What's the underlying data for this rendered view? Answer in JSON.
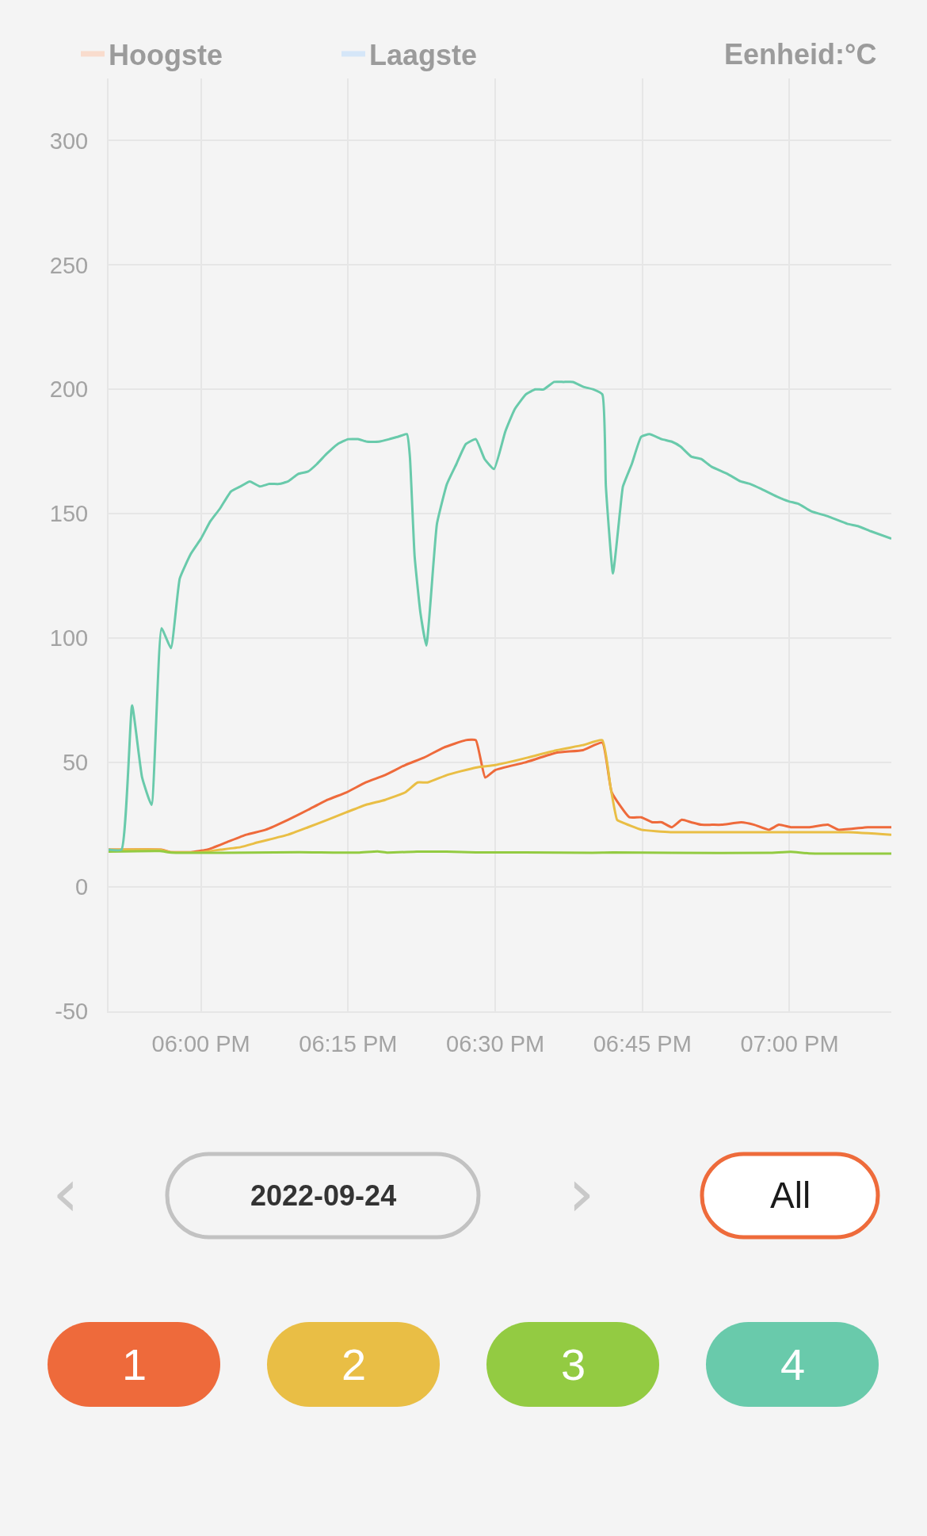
{
  "chart_data": {
    "type": "line",
    "xlim": [
      17.843,
      19.173
    ],
    "xticks": [
      {
        "value": 18,
        "label": "06:00 PM"
      },
      {
        "value": 18.25,
        "label": "06:15 PM"
      },
      {
        "value": 18.5,
        "label": "06:30 PM"
      },
      {
        "value": 18.75,
        "label": "06:45 PM"
      },
      {
        "value": 19,
        "label": "07:00 PM"
      }
    ],
    "ylim": [
      -50,
      325
    ],
    "yticks": [
      -50,
      0,
      50,
      100,
      150,
      200,
      250,
      300
    ],
    "grid": true,
    "legend": "top left",
    "annotations": [
      "Eenheid:°C",
      "‹",
      "2022-09-24",
      "›",
      "All"
    ],
    "series": [
      {
        "name": "Hoogste",
        "color": "#f9dccd"
      },
      {
        "name": "Laagste",
        "color": "#d5e6f8"
      },
      {
        "name": "1",
        "color": "#ee6a3b",
        "x": [
          17.843,
          17.933,
          17.948,
          17.983,
          18.011,
          18.044,
          18.077,
          18.11,
          18.148,
          18.182,
          18.215,
          18.247,
          18.28,
          18.313,
          18.347,
          18.379,
          18.412,
          18.45,
          18.467,
          18.483,
          18.5,
          18.55,
          18.605,
          18.649,
          18.682,
          18.698,
          18.728,
          18.748,
          18.767,
          18.783,
          18.8,
          18.817,
          18.833,
          18.85,
          18.868,
          18.885,
          18.918,
          18.94,
          18.965,
          18.982,
          19.002,
          19.017,
          19.033,
          19.065,
          19.083,
          19.133,
          19.173
        ],
        "values": [
          15,
          15,
          14,
          14,
          15,
          18,
          21,
          23,
          27,
          31,
          35,
          38,
          42,
          45,
          49,
          52,
          56,
          59,
          59,
          44,
          47,
          50,
          54,
          55,
          58,
          38,
          28,
          28,
          26,
          26,
          24,
          27,
          26,
          25,
          25,
          25,
          26,
          25,
          23,
          25,
          24,
          24,
          24,
          25,
          23,
          24,
          24
        ]
      },
      {
        "name": "2",
        "color": "#e9be45",
        "x": [
          17.843,
          17.93,
          17.948,
          18.0,
          18.033,
          18.067,
          18.098,
          18.148,
          18.182,
          18.215,
          18.247,
          18.28,
          18.313,
          18.347,
          18.368,
          18.385,
          18.418,
          18.467,
          18.5,
          18.555,
          18.605,
          18.649,
          18.682,
          18.696,
          18.707,
          18.715,
          18.748,
          18.798,
          18.852,
          18.93,
          18.965,
          19.002,
          19.1,
          19.173
        ],
        "values": [
          15,
          15,
          14,
          14,
          15,
          16,
          18,
          21,
          24,
          27,
          30,
          33,
          35,
          38,
          42,
          42,
          45,
          48,
          49,
          52,
          55,
          57,
          59,
          40,
          27,
          26,
          23,
          22,
          22,
          22,
          22,
          22,
          22,
          21
        ]
      },
      {
        "name": "3",
        "color": "#93cb42",
        "x": [
          17.843,
          17.93,
          17.95,
          18.083,
          18.167,
          18.267,
          18.3,
          18.317,
          18.367,
          18.417,
          18.467,
          18.55,
          18.665,
          18.7,
          18.8,
          18.965,
          19.002,
          19.033,
          19.173
        ],
        "values": [
          14.2,
          14.4,
          13.8,
          13.8,
          14.0,
          13.8,
          14.3,
          13.8,
          14.2,
          14.2,
          13.9,
          13.9,
          13.7,
          13.9,
          13.7,
          13.7,
          14.1,
          13.5,
          13.4
        ]
      },
      {
        "name": "4",
        "color": "#69caab",
        "x": [
          17.843,
          17.865,
          17.883,
          17.9,
          17.916,
          17.933,
          17.949,
          17.964,
          17.983,
          18.0,
          18.016,
          18.032,
          18.051,
          18.067,
          18.083,
          18.1,
          18.116,
          18.133,
          18.148,
          18.165,
          18.182,
          18.197,
          18.213,
          18.232,
          18.25,
          18.267,
          18.282,
          18.302,
          18.32,
          18.335,
          18.35,
          18.355,
          18.363,
          18.373,
          18.383,
          18.395,
          18.401,
          18.418,
          18.434,
          18.45,
          18.467,
          18.482,
          18.498,
          18.517,
          18.533,
          18.552,
          18.568,
          18.582,
          18.6,
          18.616,
          18.632,
          18.65,
          18.667,
          18.682,
          18.688,
          18.7,
          18.712,
          18.717,
          18.732,
          18.748,
          18.762,
          18.783,
          18.8,
          18.815,
          18.833,
          18.85,
          18.867,
          18.895,
          18.917,
          18.933,
          18.952,
          18.978,
          18.999,
          19.015,
          19.037,
          19.065,
          19.098,
          19.117,
          19.138,
          19.173
        ],
        "values": [
          15,
          15,
          73,
          44,
          33,
          104,
          96,
          124,
          134,
          140,
          147,
          152,
          159,
          161,
          163,
          161,
          162,
          162,
          163,
          166,
          167,
          170,
          174,
          178,
          180,
          180,
          179,
          179,
          180,
          181,
          182,
          173,
          133,
          110,
          97,
          130,
          146,
          162,
          170,
          178,
          180,
          172,
          168,
          183,
          192,
          198,
          200,
          200,
          203,
          203,
          203,
          201,
          200,
          198,
          161,
          126,
          151,
          161,
          170,
          181,
          182,
          180,
          179,
          177,
          173,
          172,
          169,
          166,
          163,
          162,
          160,
          157,
          155,
          154,
          151,
          149,
          146,
          145,
          143,
          140
        ]
      }
    ]
  }
}
